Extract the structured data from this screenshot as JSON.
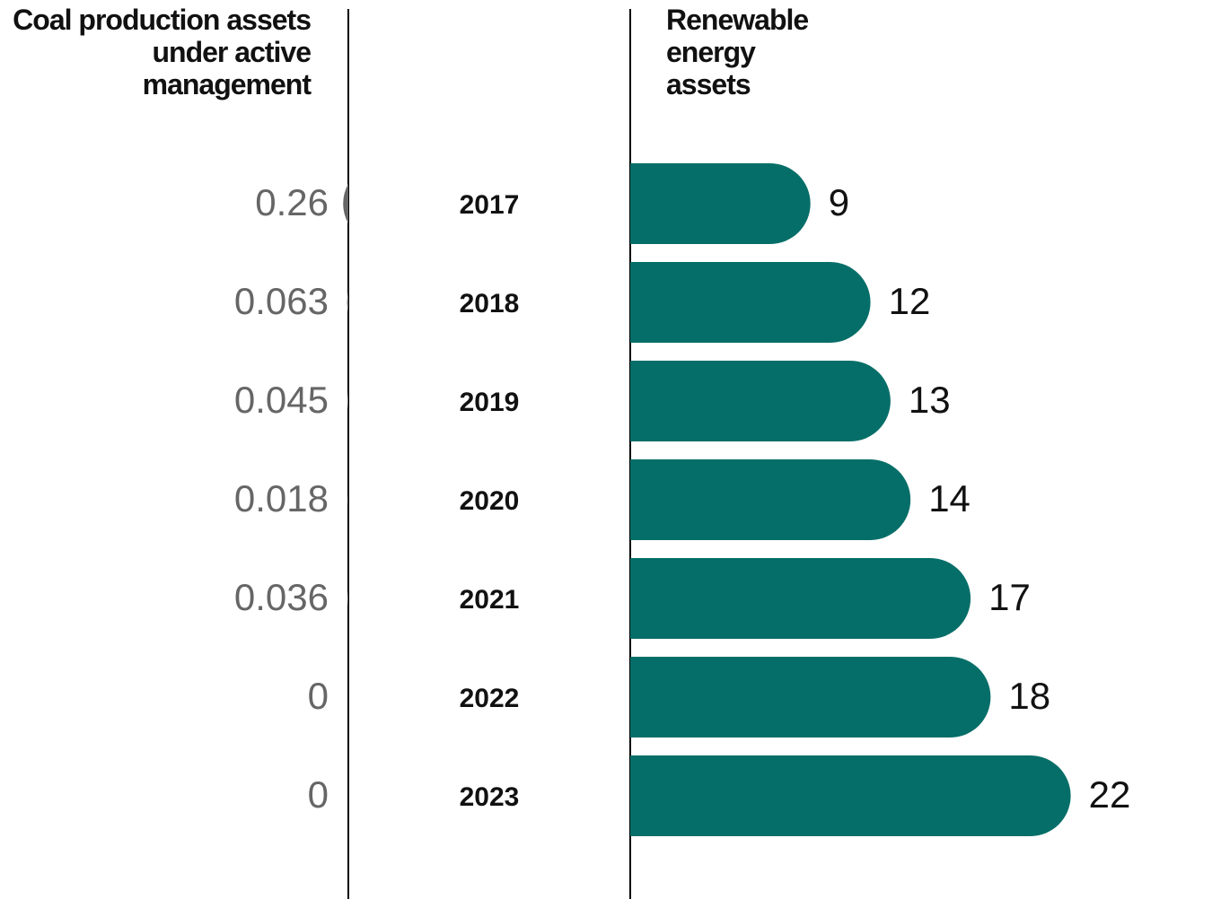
{
  "chart_data": {
    "type": "bar",
    "categories": [
      "2017",
      "2018",
      "2019",
      "2020",
      "2021",
      "2022",
      "2023"
    ],
    "series": [
      {
        "name": "Coal production assets under active management",
        "color": "#666666",
        "values": [
          0.26,
          0.063,
          0.045,
          0.018,
          0.036,
          0,
          0
        ]
      },
      {
        "name": "Renewable energy assets",
        "color": "#066e68",
        "values": [
          9,
          12,
          13,
          14,
          17,
          18,
          22
        ]
      }
    ]
  }
}
